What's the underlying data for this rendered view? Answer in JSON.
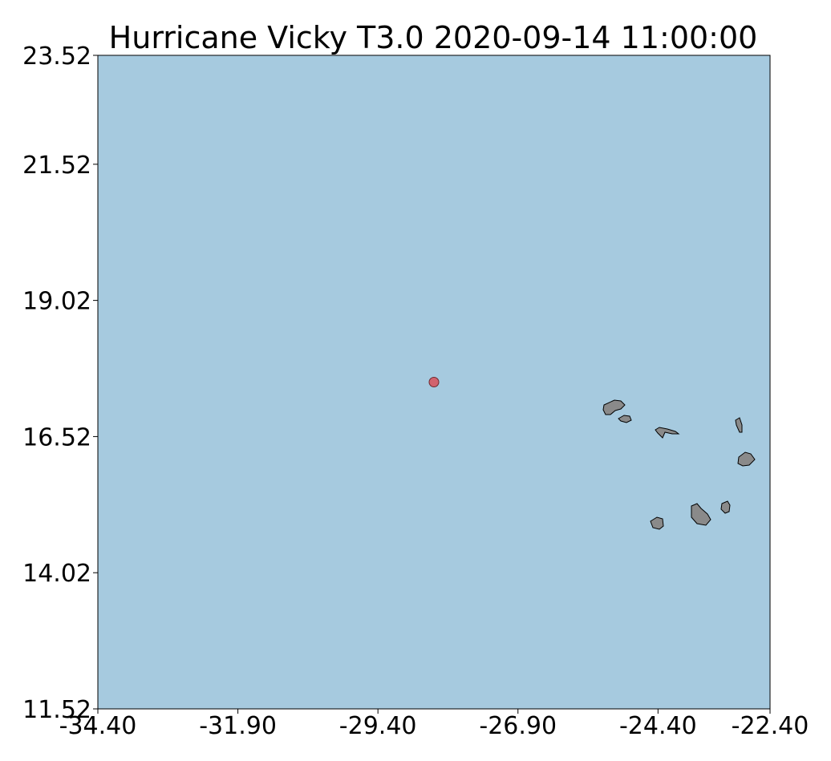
{
  "title": "Hurricane Vicky T3.0 2020-09-14 11:00:00",
  "x_ticks": [
    "-34.40",
    "-31.90",
    "-29.40",
    "-26.90",
    "-24.40",
    "-22.40"
  ],
  "y_ticks": [
    "23.52",
    "21.52",
    "19.02",
    "16.52",
    "14.02",
    "11.52"
  ],
  "colors": {
    "ocean": "#a6cadf",
    "land": "#8a8a8a",
    "land_outline": "#000000",
    "storm_marker": "#d2636e"
  },
  "chart_data": {
    "type": "scatter",
    "title": "Hurricane Vicky T3.0 2020-09-14 11:00:00",
    "xlim": [
      -34.4,
      -22.4
    ],
    "ylim": [
      11.52,
      23.52
    ],
    "x_ticks": [
      -34.4,
      -31.9,
      -29.4,
      -26.9,
      -24.4,
      -22.4
    ],
    "y_ticks": [
      23.52,
      21.52,
      19.02,
      16.52,
      14.02,
      11.52
    ],
    "series": [
      {
        "x": [
          -28.4
        ],
        "y": [
          17.52
        ]
      }
    ]
  }
}
